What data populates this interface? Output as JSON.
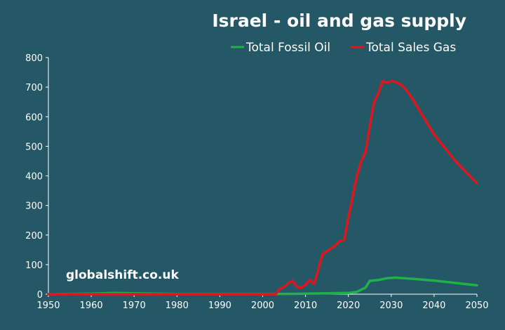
{
  "chart_data": {
    "type": "line",
    "title": "Israel - oil and gas supply",
    "watermark": "globalshift.co.uk",
    "xlabel": "",
    "ylabel": "",
    "xlim": [
      1950,
      2050
    ],
    "ylim": [
      0,
      800
    ],
    "x_ticks": [
      1950,
      1960,
      1970,
      1980,
      1990,
      2000,
      2010,
      2020,
      2030,
      2040,
      2050
    ],
    "y_ticks": [
      0,
      100,
      200,
      300,
      400,
      500,
      600,
      700,
      800
    ],
    "grid": false,
    "legend_position": "top-right",
    "series": [
      {
        "name": "Total Fossil Oil",
        "color": "#1fb24a",
        "x": [
          1950,
          1955,
          1960,
          1965,
          1970,
          1975,
          1980,
          1985,
          1990,
          1995,
          2000,
          2005,
          2010,
          2015,
          2020,
          2022,
          2024,
          2025,
          2027,
          2029,
          2031,
          2033,
          2035,
          2040,
          2045,
          2050
        ],
        "y": [
          0,
          1,
          2,
          4,
          3,
          2,
          1,
          1,
          1,
          1,
          1,
          1,
          2,
          3,
          4,
          8,
          22,
          45,
          48,
          54,
          56,
          54,
          52,
          46,
          38,
          30
        ]
      },
      {
        "name": "Total Sales Gas",
        "color": "#e2141c",
        "x": [
          1950,
          2003,
          2004,
          2005,
          2006,
          2007,
          2008,
          2009,
          2010,
          2011,
          2012,
          2013,
          2014,
          2015,
          2016,
          2017,
          2018,
          2019,
          2020,
          2021,
          2022,
          2023,
          2024,
          2025,
          2026,
          2027,
          2028,
          2029,
          2030,
          2031,
          2032,
          2033,
          2035,
          2040,
          2045,
          2050
        ],
        "y": [
          0,
          0,
          18,
          25,
          38,
          45,
          25,
          22,
          32,
          48,
          35,
          85,
          135,
          145,
          155,
          165,
          180,
          182,
          260,
          330,
          400,
          450,
          480,
          570,
          650,
          680,
          720,
          715,
          720,
          718,
          710,
          700,
          660,
          540,
          450,
          375
        ]
      }
    ]
  }
}
